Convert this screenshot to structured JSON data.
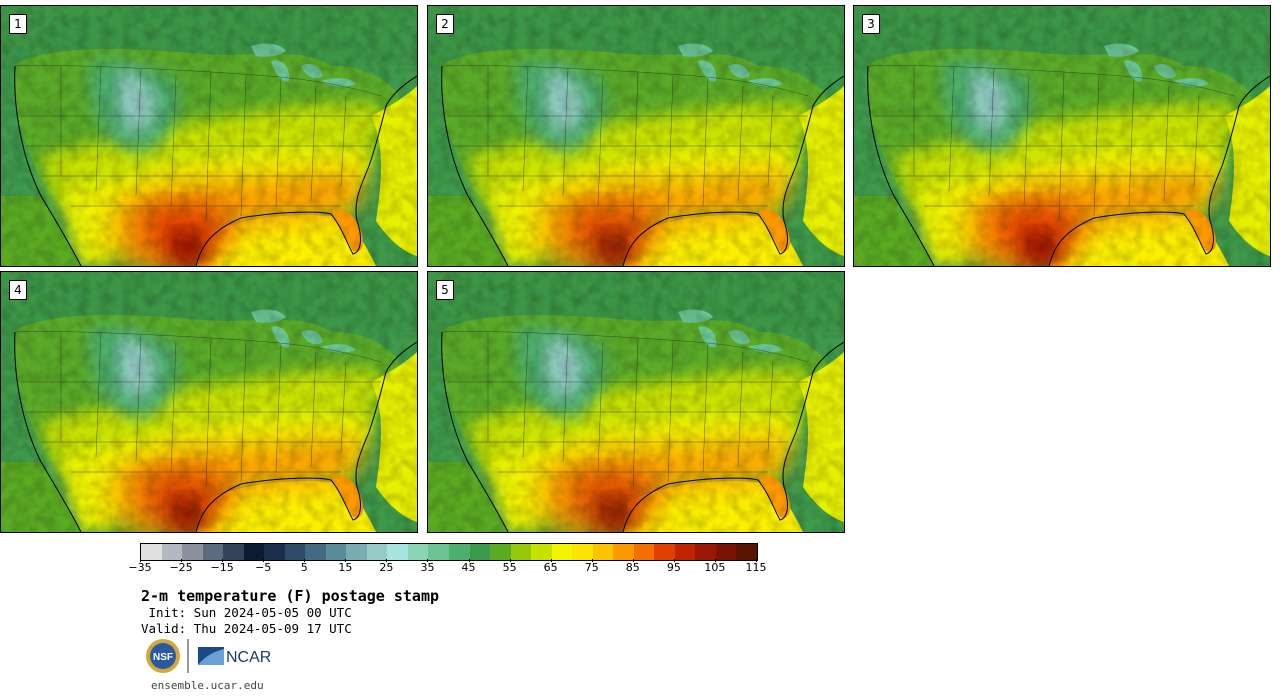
{
  "panels": [
    {
      "label": "1",
      "heat": 1.0
    },
    {
      "label": "2",
      "heat": 0.92
    },
    {
      "label": "3",
      "heat": 1.0
    },
    {
      "label": "4",
      "heat": 0.95
    },
    {
      "label": "5",
      "heat": 0.9
    }
  ],
  "colorbar": {
    "colors": [
      "#e0e0e0",
      "#b4b8c0",
      "#8a92a0",
      "#5e6a7e",
      "#34425a",
      "#0e1a30",
      "#1a2e4c",
      "#2e4a68",
      "#426a82",
      "#5a8c9a",
      "#78aeb2",
      "#96ccc8",
      "#a6e6dc",
      "#88d6b4",
      "#6ac494",
      "#4eae6e",
      "#3a9a4a",
      "#5aaa22",
      "#96c808",
      "#c8e200",
      "#f0f400",
      "#fce400",
      "#fcc400",
      "#fc9a00",
      "#f46e00",
      "#e04000",
      "#c02400",
      "#9c1806",
      "#7a1404",
      "#5a1402"
    ],
    "ticks": [
      "−35",
      "−25",
      "−15",
      "−5",
      "5",
      "15",
      "25",
      "35",
      "45",
      "55",
      "65",
      "75",
      "85",
      "95",
      "105",
      "115"
    ],
    "range": [
      -40,
      120
    ]
  },
  "title": "2-m temperature (F) postage stamp",
  "init": " Init: Sun 2024-05-05 00 UTC",
  "valid": "Valid: Thu 2024-05-09 17 UTC",
  "logos": {
    "nsf": "NSF",
    "ncar": "NCAR"
  },
  "url": "ensemble.ucar.edu"
}
